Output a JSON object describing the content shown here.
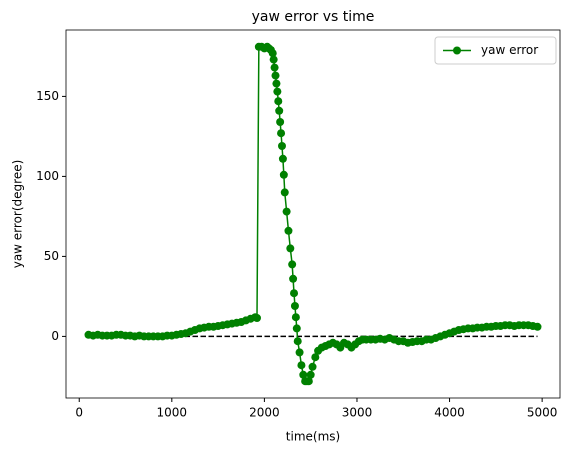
{
  "chart_data": {
    "type": "line",
    "title": "yaw error vs time",
    "xlabel": "time(ms)",
    "ylabel": "yaw error(degree)",
    "legend": "upper right",
    "x": [
      100,
      150,
      200,
      250,
      300,
      350,
      400,
      450,
      500,
      550,
      600,
      650,
      700,
      750,
      800,
      850,
      900,
      950,
      1000,
      1050,
      1100,
      1150,
      1200,
      1250,
      1300,
      1350,
      1400,
      1450,
      1500,
      1550,
      1600,
      1650,
      1700,
      1750,
      1800,
      1850,
      1900,
      1920,
      1940,
      1970,
      2000,
      2030,
      2050,
      2070,
      2090,
      2100,
      2110,
      2120,
      2130,
      2140,
      2150,
      2160,
      2170,
      2180,
      2190,
      2200,
      2210,
      2220,
      2240,
      2260,
      2280,
      2300,
      2310,
      2320,
      2330,
      2340,
      2350,
      2360,
      2380,
      2400,
      2420,
      2440,
      2460,
      2480,
      2500,
      2520,
      2550,
      2580,
      2620,
      2660,
      2700,
      2740,
      2780,
      2820,
      2860,
      2900,
      2940,
      2980,
      3020,
      3060,
      3100,
      3150,
      3200,
      3250,
      3300,
      3350,
      3400,
      3450,
      3500,
      3550,
      3600,
      3650,
      3700,
      3750,
      3800,
      3850,
      3900,
      3950,
      4000,
      4050,
      4100,
      4150,
      4200,
      4250,
      4300,
      4350,
      4400,
      4450,
      4500,
      4550,
      4600,
      4650,
      4700,
      4750,
      4800,
      4850,
      4900,
      4950
    ],
    "series": [
      {
        "name": "yaw error",
        "color": "#008000",
        "values": [
          1,
          0.5,
          1,
          0.5,
          0.5,
          0.5,
          1,
          1,
          0.5,
          0.5,
          0,
          0.5,
          0,
          0,
          0,
          0,
          0,
          0.5,
          0.5,
          1,
          1.5,
          2,
          3,
          4,
          5,
          5.5,
          6,
          6,
          6.5,
          7,
          7.5,
          8,
          8.5,
          9,
          10,
          11,
          12,
          11.5,
          181,
          181,
          180,
          181,
          180,
          179,
          177,
          173,
          168,
          163,
          158,
          153,
          147,
          141,
          134,
          127,
          119,
          111,
          101,
          90,
          78,
          66,
          55,
          45,
          36,
          27,
          19,
          12,
          5,
          -3,
          -10,
          -18,
          -24,
          -28,
          -28,
          -28,
          -24,
          -19,
          -13,
          -9,
          -7,
          -6,
          -5,
          -4,
          -5,
          -7,
          -4,
          -5,
          -7,
          -5,
          -3,
          -2,
          -2,
          -2,
          -2,
          -1.5,
          -2,
          -1,
          -2,
          -3,
          -3,
          -4,
          -3.5,
          -3,
          -3,
          -2,
          -2,
          -1,
          0,
          1,
          2,
          3,
          4,
          4.5,
          5,
          5,
          5.5,
          5.5,
          6,
          6,
          6.5,
          6.5,
          7,
          7,
          6.5,
          7,
          7,
          7,
          6.5,
          6
        ]
      }
    ],
    "hline": {
      "value": 0,
      "xmin": 100,
      "xmax": 4950,
      "color": "#000000"
    },
    "xlim": [
      -143,
      5193
    ],
    "ylim": [
      -38.5,
      191.5
    ],
    "xticks": [
      0,
      1000,
      2000,
      3000,
      4000,
      5000
    ],
    "yticks": [
      0,
      50,
      100,
      150
    ]
  }
}
